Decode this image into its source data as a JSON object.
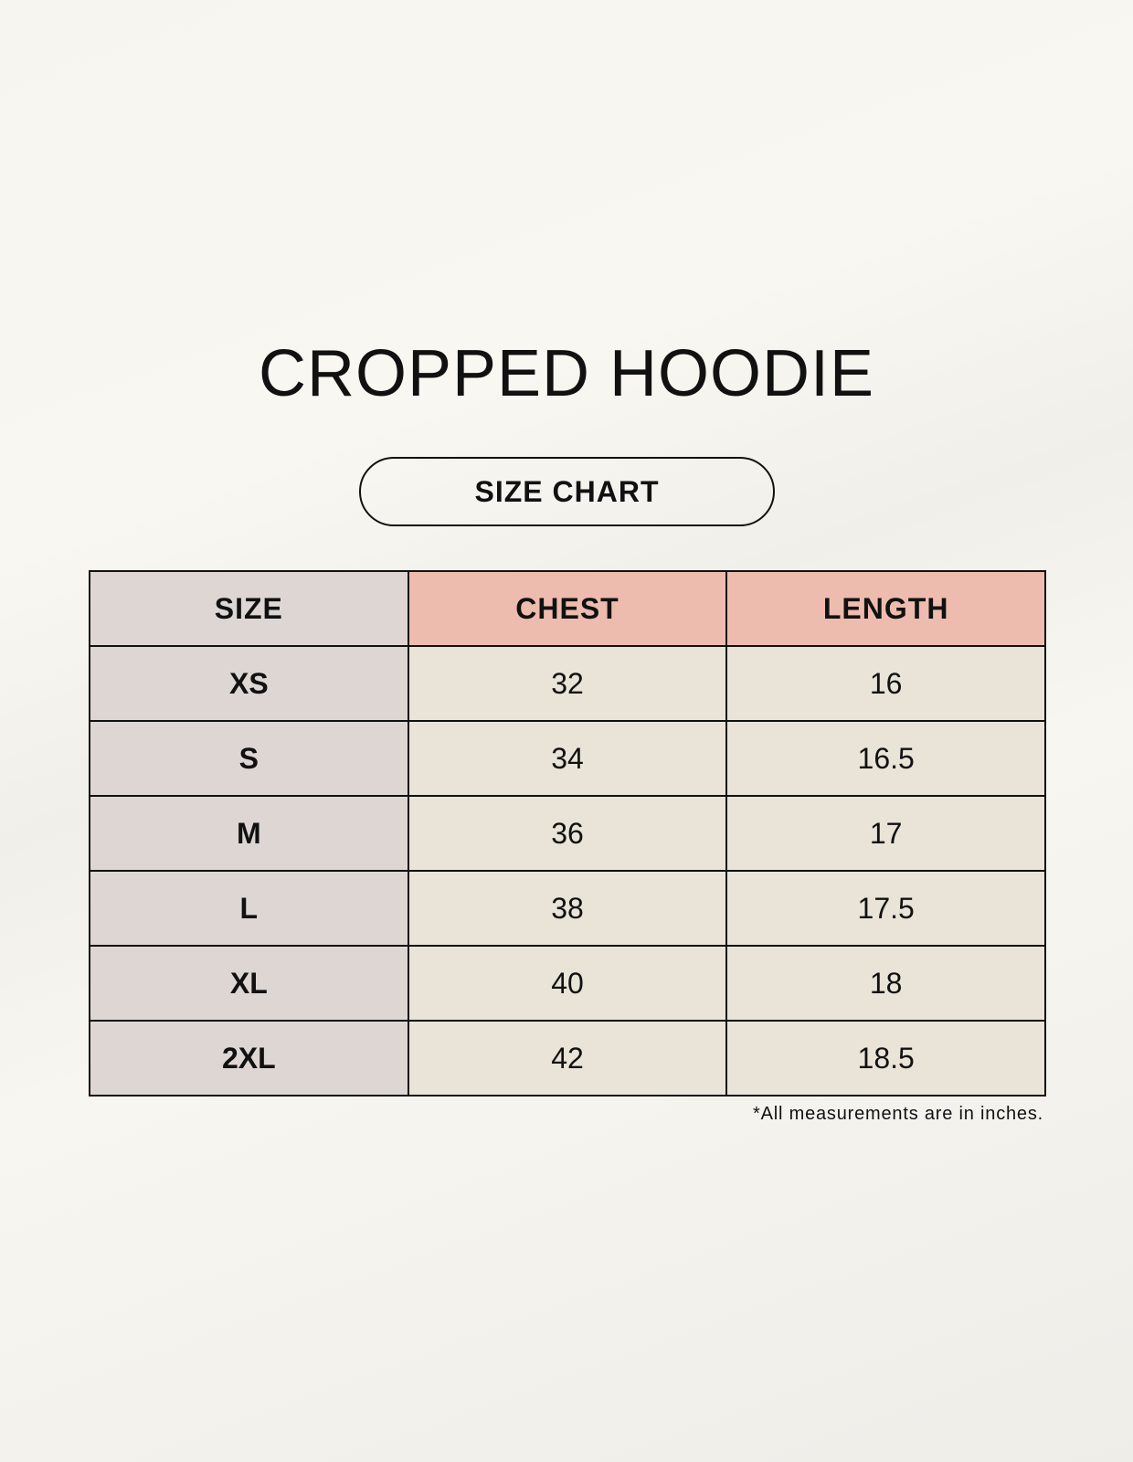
{
  "title": "CROPPED HOODIE",
  "subtitle": "SIZE CHART",
  "colors": {
    "size_column": "#ded6d3",
    "header_accent": "#edbcae",
    "cell": "#e9e3d8"
  },
  "table": {
    "headers": [
      "SIZE",
      "CHEST",
      "LENGTH"
    ],
    "rows": [
      [
        "XS",
        "32",
        "16"
      ],
      [
        "S",
        "34",
        "16.5"
      ],
      [
        "M",
        "36",
        "17"
      ],
      [
        "L",
        "38",
        "17.5"
      ],
      [
        "XL",
        "40",
        "18"
      ],
      [
        "2XL",
        "42",
        "18.5"
      ]
    ]
  },
  "footnote": "*All measurements are in inches."
}
